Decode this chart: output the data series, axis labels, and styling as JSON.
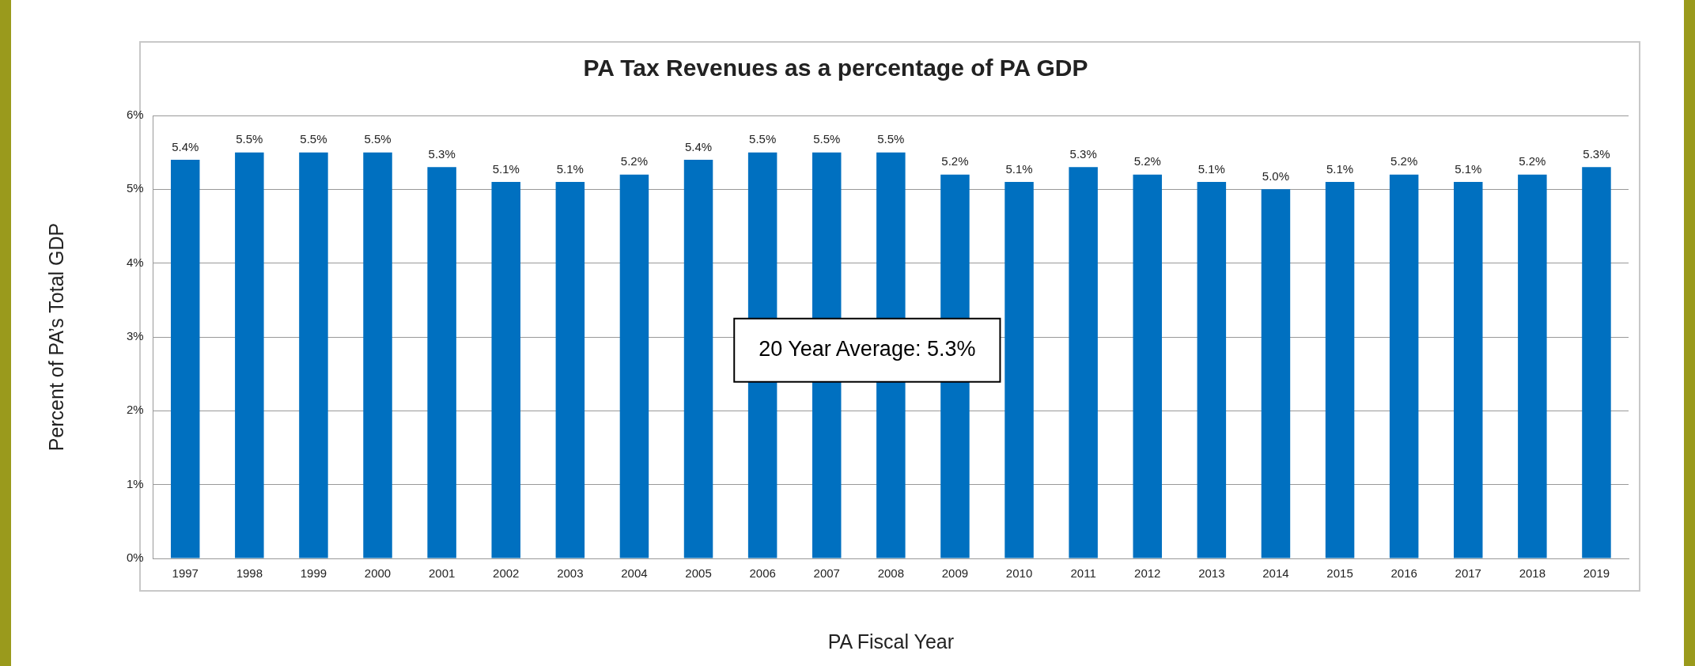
{
  "chart_data": {
    "type": "bar",
    "title": "PA Tax Revenues as a percentage of PA GDP",
    "xlabel": "PA Fiscal Year",
    "ylabel": "Percent of PA’s Total GDP",
    "categories": [
      "1997",
      "1998",
      "1999",
      "2000",
      "2001",
      "2002",
      "2003",
      "2004",
      "2005",
      "2006",
      "2007",
      "2008",
      "2009",
      "2010",
      "2011",
      "2012",
      "2013",
      "2014",
      "2015",
      "2016",
      "2017",
      "2018",
      "2019"
    ],
    "values": [
      5.4,
      5.5,
      5.5,
      5.5,
      5.3,
      5.1,
      5.1,
      5.2,
      5.4,
      5.5,
      5.5,
      5.5,
      5.2,
      5.1,
      5.3,
      5.2,
      5.1,
      5.0,
      5.1,
      5.2,
      5.1,
      5.2,
      5.3
    ],
    "value_labels": [
      "5.4%",
      "5.5%",
      "5.5%",
      "5.5%",
      "5.3%",
      "5.1%",
      "5.1%",
      "5.2%",
      "5.4%",
      "5.5%",
      "5.5%",
      "5.5%",
      "5.2%",
      "5.1%",
      "5.3%",
      "5.2%",
      "5.1%",
      "5.0%",
      "5.1%",
      "5.2%",
      "5.1%",
      "5.2%",
      "5.3%"
    ],
    "color": "#0070c0",
    "ylim": [
      0,
      6
    ],
    "yticks": [
      {
        "value": 0,
        "label": "0%"
      },
      {
        "value": 1,
        "label": "1%"
      },
      {
        "value": 2,
        "label": "2%"
      },
      {
        "value": 3,
        "label": "3%"
      },
      {
        "value": 4,
        "label": "4%"
      },
      {
        "value": 5,
        "label": "5%"
      },
      {
        "value": 6,
        "label": "6%"
      }
    ],
    "grid": "y",
    "legend": false,
    "annotations": [
      "20 Year Average: 5.3%"
    ]
  }
}
